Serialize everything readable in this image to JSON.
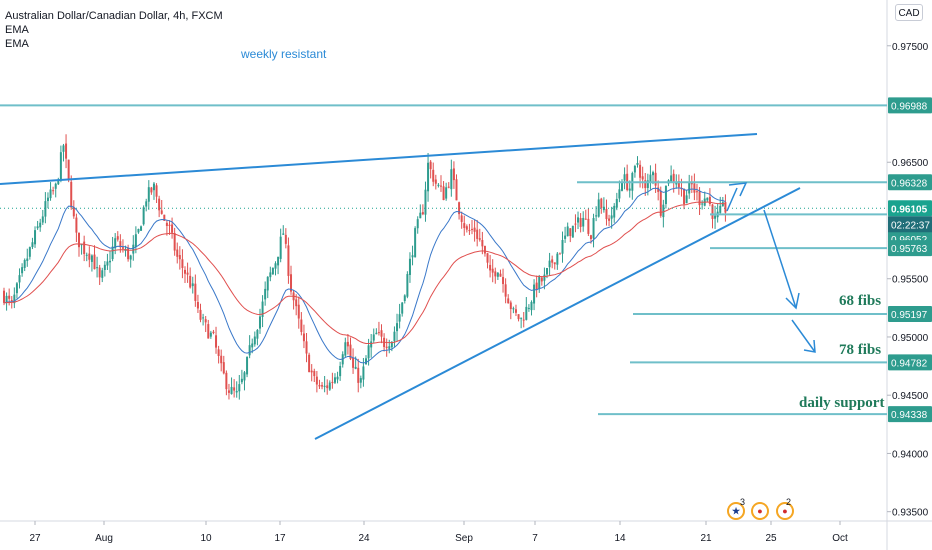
{
  "legend": {
    "symbol": "Australian Dollar/Canadian Dollar, 4h, FXCM",
    "indicator_1": "EMA",
    "indicator_2": "EMA"
  },
  "currency": "CAD",
  "colors": {
    "hline": "#6fbfc9",
    "trend": "#2b8ad6",
    "up": "#2e9c8e",
    "down": "#e0504f",
    "ema_fast": "#3a78c9",
    "ema_slow": "#e0504f",
    "annot_text": "#1f7a5a",
    "label_bg": "#2e9c8e",
    "current_bg": "#1aa38f",
    "time_bg": "#1f6e78"
  },
  "chart_data": {
    "type": "candlestick",
    "title": "Australian Dollar/Canadian Dollar, 4h, FXCM",
    "ylim": [
      0.9342,
      0.9785
    ],
    "x_ticks": [
      "27",
      "Aug",
      "10",
      "17",
      "24",
      "Sep",
      "7",
      "14",
      "21",
      "25",
      "Oct"
    ],
    "y_ticks": [
      "0.97500",
      "0.96500",
      "0.95500",
      "0.95000",
      "0.94500",
      "0.94000",
      "0.93500"
    ],
    "price_labels": [
      "0.96988",
      "0.96328",
      "0.96105",
      "0.96052",
      "0.95763",
      "0.95197",
      "0.94782",
      "0.94338"
    ],
    "current_price": "0.96105",
    "countdown": "02:22:37",
    "levels": [
      {
        "price": 0.96988,
        "label": "weekly resistant"
      },
      {
        "price": 0.96328,
        "label": ""
      },
      {
        "price": 0.96052,
        "label": ""
      },
      {
        "price": 0.95763,
        "label": ""
      },
      {
        "price": 0.95197,
        "label": "68 fibs"
      },
      {
        "price": 0.94782,
        "label": "78 fibs"
      },
      {
        "price": 0.94338,
        "label": "daily support"
      }
    ],
    "annotations": [
      "weekly resistant",
      "68 fibs",
      "78 fibs",
      "daily support"
    ],
    "anchors": [
      [
        0,
        0.9538
      ],
      [
        4,
        0.9527
      ],
      [
        9,
        0.9562
      ],
      [
        14,
        0.9593
      ],
      [
        18,
        0.9618
      ],
      [
        21,
        0.9628
      ],
      [
        24,
        0.9665
      ],
      [
        26,
        0.9632
      ],
      [
        29,
        0.9585
      ],
      [
        32,
        0.9575
      ],
      [
        35,
        0.957
      ],
      [
        38,
        0.9548
      ],
      [
        41,
        0.9562
      ],
      [
        44,
        0.9583
      ],
      [
        47,
        0.9575
      ],
      [
        50,
        0.9568
      ],
      [
        53,
        0.959
      ],
      [
        56,
        0.962
      ],
      [
        59,
        0.9628
      ],
      [
        62,
        0.9605
      ],
      [
        65,
        0.9592
      ],
      [
        68,
        0.9568
      ],
      [
        71,
        0.9556
      ],
      [
        74,
        0.9541
      ],
      [
        76,
        0.952
      ],
      [
        79,
        0.9508
      ],
      [
        82,
        0.9498
      ],
      [
        85,
        0.9472
      ],
      [
        88,
        0.9455
      ],
      [
        91,
        0.945
      ],
      [
        94,
        0.9467
      ],
      [
        97,
        0.9498
      ],
      [
        100,
        0.9518
      ],
      [
        103,
        0.9548
      ],
      [
        106,
        0.9565
      ],
      [
        109,
        0.959
      ],
      [
        112,
        0.9542
      ],
      [
        115,
        0.9512
      ],
      [
        118,
        0.9482
      ],
      [
        121,
        0.9462
      ],
      [
        124,
        0.9455
      ],
      [
        127,
        0.946
      ],
      [
        130,
        0.947
      ],
      [
        133,
        0.95
      ],
      [
        136,
        0.9472
      ],
      [
        139,
        0.9462
      ],
      [
        142,
        0.949
      ],
      [
        145,
        0.9502
      ],
      [
        148,
        0.9495
      ],
      [
        151,
        0.9498
      ],
      [
        154,
        0.952
      ],
      [
        157,
        0.9552
      ],
      [
        160,
        0.9588
      ],
      [
        163,
        0.961
      ],
      [
        165,
        0.9648
      ],
      [
        168,
        0.9632
      ],
      [
        171,
        0.9622
      ],
      [
        174,
        0.964
      ],
      [
        177,
        0.961
      ],
      [
        180,
        0.959
      ],
      [
        183,
        0.9592
      ],
      [
        186,
        0.9578
      ],
      [
        189,
        0.9552
      ],
      [
        192,
        0.956
      ],
      [
        195,
        0.954
      ],
      [
        198,
        0.952
      ],
      [
        201,
        0.9515
      ],
      [
        204,
        0.9528
      ],
      [
        207,
        0.9545
      ],
      [
        210,
        0.955
      ],
      [
        213,
        0.9565
      ],
      [
        216,
        0.9575
      ],
      [
        219,
        0.959
      ],
      [
        222,
        0.9595
      ],
      [
        225,
        0.9602
      ],
      [
        228,
        0.959
      ],
      [
        231,
        0.962
      ],
      [
        234,
        0.96
      ],
      [
        237,
        0.9608
      ],
      [
        240,
        0.9638
      ],
      [
        243,
        0.9628
      ],
      [
        246,
        0.965
      ],
      [
        249,
        0.9625
      ],
      [
        252,
        0.9645
      ],
      [
        255,
        0.961
      ],
      [
        258,
        0.9638
      ],
      [
        261,
        0.9635
      ],
      [
        264,
        0.962
      ],
      [
        267,
        0.963
      ],
      [
        270,
        0.9618
      ],
      [
        273,
        0.962
      ],
      [
        276,
        0.96
      ],
      [
        279,
        0.961
      ]
    ]
  },
  "events": [
    {
      "flag": "AU",
      "count": "3"
    },
    {
      "flag": "CA",
      "count": ""
    },
    {
      "flag": "CA",
      "count": "2"
    }
  ]
}
